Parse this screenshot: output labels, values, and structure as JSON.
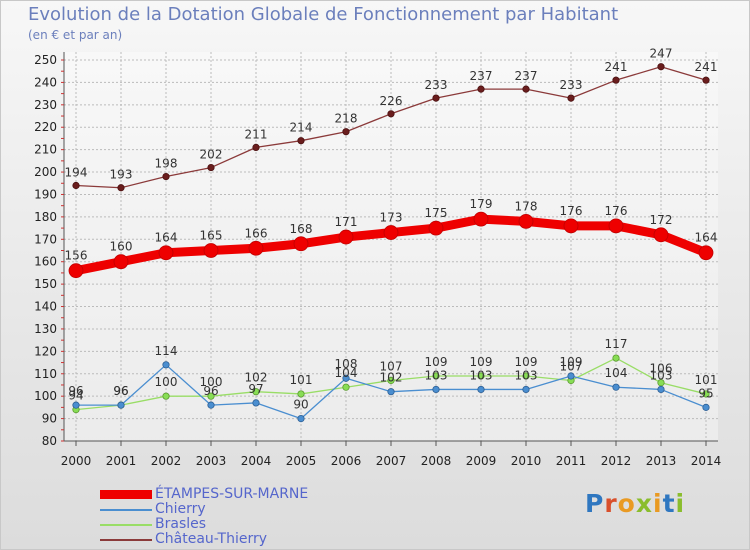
{
  "title": "Evolution de la Dotation Globale de Fonctionnement par Habitant",
  "subtitle": "(en € et par an)",
  "logo": {
    "text": "Proxiti",
    "letter_colors": [
      "#2f77c0",
      "#d94f2b",
      "#e99a23",
      "#8abd2d",
      "#e99a23",
      "#2f77c0",
      "#8abd2d"
    ]
  },
  "chart_data": {
    "type": "line",
    "title": "Evolution de la Dotation Globale de Fonctionnement par Habitant",
    "subtitle": "(en € et par an)",
    "x": [
      2000,
      2001,
      2002,
      2003,
      2004,
      2005,
      2006,
      2007,
      2008,
      2009,
      2010,
      2011,
      2012,
      2013,
      2014
    ],
    "ylim": [
      80,
      250
    ],
    "yticks": [
      80,
      90,
      100,
      110,
      120,
      130,
      140,
      150,
      160,
      170,
      180,
      190,
      200,
      210,
      220,
      230,
      240,
      250
    ],
    "grid": true,
    "legend_position": "bottom-left",
    "series": [
      {
        "name": "ÉTAMPES-SUR-MARNE",
        "color": "#ee0000",
        "values": [
          156,
          160,
          164,
          165,
          166,
          168,
          171,
          173,
          175,
          179,
          178,
          176,
          176,
          172,
          164
        ]
      },
      {
        "name": "Chierry",
        "color": "#4a8ed0",
        "values": [
          96,
          96,
          114,
          96,
          97,
          90,
          108,
          102,
          103,
          103,
          103,
          109,
          104,
          103,
          95
        ]
      },
      {
        "name": "Brasles",
        "color": "#88dd55",
        "values": [
          94,
          96,
          100,
          100,
          102,
          101,
          104,
          107,
          109,
          109,
          109,
          107,
          117,
          106,
          101
        ]
      },
      {
        "name": "Château-Thierry",
        "color": "#8b3a3a",
        "values": [
          194,
          193,
          198,
          202,
          211,
          214,
          218,
          226,
          233,
          237,
          237,
          233,
          241,
          247,
          241
        ]
      }
    ]
  }
}
